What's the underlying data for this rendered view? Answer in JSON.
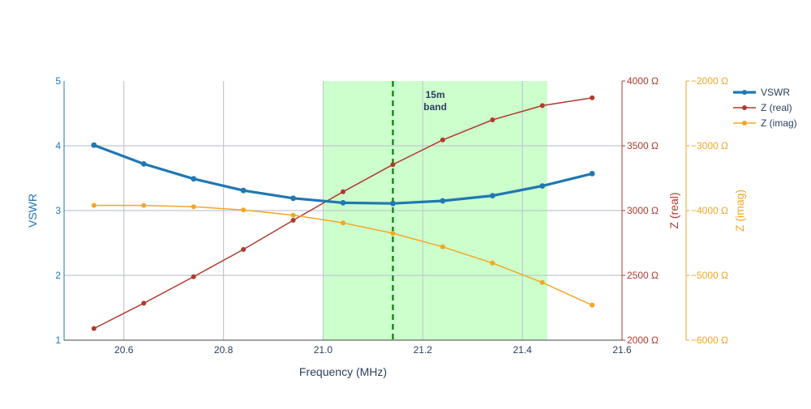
{
  "chart_data": {
    "type": "line",
    "title": "",
    "xlabel": "Frequency (MHz)",
    "xlim": [
      20.48,
      21.6
    ],
    "x_ticks": [
      "20.6",
      "20.8",
      "21.0",
      "21.2",
      "21.4",
      "21.6"
    ],
    "x_tick_values": [
      20.6,
      20.8,
      21.0,
      21.2,
      21.4,
      21.6
    ],
    "grid": true,
    "legend_position": "top-right",
    "band": {
      "label_line1": "15m",
      "label_line2": "band",
      "x_start": 21.0,
      "x_end": 21.45,
      "marker_x": 21.14,
      "fill_color": "#ccffcc",
      "marker_color": "#008000"
    },
    "axes": [
      {
        "id": "vswr",
        "label": "VSWR",
        "color": "#1f77b4",
        "range": [
          1,
          5
        ],
        "ticks": [
          "1",
          "2",
          "3",
          "4",
          "5"
        ],
        "tick_values": [
          1,
          2,
          3,
          4,
          5
        ]
      },
      {
        "id": "zreal",
        "label": "Z (real)",
        "color": "#b03a2e",
        "range": [
          2000,
          4000
        ],
        "ticks": [
          "2000 Ω",
          "2500 Ω",
          "3000 Ω",
          "3500 Ω",
          "4000 Ω"
        ],
        "tick_values": [
          2000,
          2500,
          3000,
          3500,
          4000
        ]
      },
      {
        "id": "zimag",
        "label": "Z (imag)",
        "color": "#f5a623",
        "range": [
          -6000,
          -2000
        ],
        "ticks": [
          "−6000 Ω",
          "−5000 Ω",
          "−4000 Ω",
          "−3000 Ω",
          "−2000 Ω"
        ],
        "tick_values": [
          -6000,
          -5000,
          -4000,
          -3000,
          -2000
        ]
      }
    ],
    "x": [
      20.54,
      20.64,
      20.74,
      20.84,
      20.94,
      21.04,
      21.14,
      21.24,
      21.34,
      21.44,
      21.54
    ],
    "series": [
      {
        "name": "VSWR",
        "axis": "vswr",
        "color": "#1f77b4",
        "width": "thick",
        "values": [
          4.01,
          3.72,
          3.49,
          3.31,
          3.19,
          3.12,
          3.11,
          3.15,
          3.23,
          3.38,
          3.57
        ]
      },
      {
        "name": "Z (real)",
        "axis": "zreal",
        "color": "#b03a2e",
        "width": "thin",
        "values": [
          2090,
          2285,
          2490,
          2700,
          2925,
          3145,
          3355,
          3545,
          3700,
          3810,
          3870
        ]
      },
      {
        "name": "Z (imag)",
        "axis": "zimag",
        "color": "#f5a623",
        "width": "thin",
        "values": [
          -3920,
          -3920,
          -3940,
          -3990,
          -4070,
          -4190,
          -4350,
          -4560,
          -4810,
          -5110,
          -5460
        ]
      }
    ]
  }
}
